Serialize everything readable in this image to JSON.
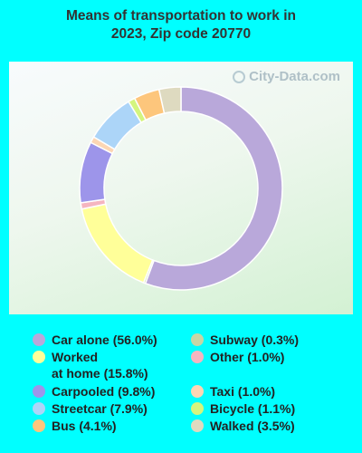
{
  "title_line1": "Means of transportation to work in",
  "title_line2": "2023, Zip code 20770",
  "watermark": "City-Data.com",
  "chart_data": {
    "type": "pie",
    "donut": true,
    "title": "Means of transportation to work in 2023, Zip code 20770",
    "slices": [
      {
        "label": "Car alone (56.0%)",
        "value": 56.0,
        "color": "#b9a8da"
      },
      {
        "label": "Subway (0.3%)",
        "value": 0.3,
        "color": "#c7d6a6"
      },
      {
        "label": "Worked at home (15.8%)",
        "value": 15.8,
        "color": "#ffff99"
      },
      {
        "label": "Other (1.0%)",
        "value": 1.0,
        "color": "#f5b5c0"
      },
      {
        "label": "Carpooled (9.8%)",
        "value": 9.8,
        "color": "#9d95ea"
      },
      {
        "label": "Taxi (1.0%)",
        "value": 1.0,
        "color": "#fcd6b4"
      },
      {
        "label": "Streetcar (7.9%)",
        "value": 7.9,
        "color": "#acd5f8"
      },
      {
        "label": "Bicycle (1.1%)",
        "value": 1.1,
        "color": "#d4f57e"
      },
      {
        "label": "Bus (4.1%)",
        "value": 4.1,
        "color": "#fdc67c"
      },
      {
        "label": "Walked (3.5%)",
        "value": 3.5,
        "color": "#dedac0"
      }
    ]
  },
  "legend": {
    "left": [
      {
        "line1": "Car alone (56.0%)",
        "color": "#b9a8da"
      },
      {
        "line1": "Worked",
        "line2": "at home (15.8%)",
        "color": "#ffff99"
      },
      {
        "line1": "Carpooled (9.8%)",
        "color": "#9d95ea"
      },
      {
        "line1": "Streetcar (7.9%)",
        "color": "#acd5f8"
      },
      {
        "line1": "Bus (4.1%)",
        "color": "#fdc67c"
      }
    ],
    "right": [
      {
        "line1": "Subway (0.3%)",
        "color": "#c7d6a6"
      },
      {
        "line1": "Other (1.0%)",
        "color": "#f5b5c0"
      },
      {
        "line1": "Taxi (1.0%)",
        "color": "#fcd6b4"
      },
      {
        "line1": "Bicycle (1.1%)",
        "color": "#d4f57e"
      },
      {
        "line1": "Walked (3.5%)",
        "color": "#dedac0"
      }
    ]
  }
}
